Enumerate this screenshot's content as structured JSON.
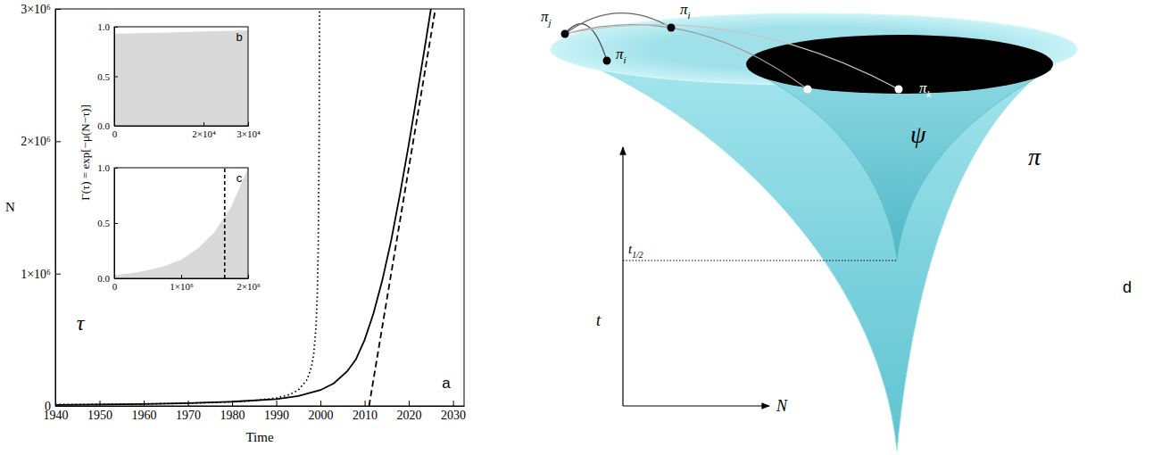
{
  "chart_data": [
    {
      "type": "line",
      "xlabel": "Time",
      "ylabel": "N",
      "annotations": [
        "a"
      ],
      "xlim": [
        1940,
        2032.5
      ],
      "ylim": [
        0,
        3000000
      ],
      "xticks": [
        1940,
        1950,
        1960,
        1970,
        1980,
        1990,
        2000,
        2010,
        2020,
        2030
      ],
      "yticks": [
        0,
        {
          "value": 1000000,
          "label": "1×10⁶"
        },
        {
          "value": 2000000,
          "label": "2×10⁶"
        },
        {
          "value": 3000000,
          "label": "3×10⁶"
        }
      ],
      "series": [
        {
          "color": "#000000",
          "line_style": "dotted",
          "x": [
            1940,
            1950,
            1960,
            1970,
            1980,
            1985,
            1990,
            1993,
            1995,
            1997,
            1998,
            1998.5,
            1999,
            1999.3,
            1999.5,
            1999.7,
            1999.8
          ],
          "values": [
            10000,
            12000,
            15000,
            20000,
            30000,
            40000,
            60000,
            86000,
            120000,
            200000,
            300000,
            400000,
            600000,
            857000,
            1200000,
            2000000,
            3000000
          ]
        },
        {
          "color": "#000000",
          "line_style": "solid",
          "x": [
            1940,
            1950,
            1960,
            1970,
            1980,
            1990,
            1995,
            2000,
            2003,
            2006,
            2008,
            2010,
            2012,
            2014,
            2016,
            2018,
            2020,
            2022,
            2024,
            2025
          ],
          "values": [
            8000,
            11000,
            15000,
            21000,
            32000,
            52000,
            75000,
            120000,
            170000,
            260000,
            350000,
            500000,
            700000,
            950000,
            1250000,
            1600000,
            1980000,
            2380000,
            2790000,
            3000000
          ]
        },
        {
          "color": "#000000",
          "line_style": "dashed",
          "x": [
            2011,
            2026
          ],
          "values": [
            0,
            3000000
          ]
        }
      ]
    },
    {
      "type": "area",
      "ylabel": "Γ(τ) = exp[−μ(N−τ)]",
      "annotations": [
        "b"
      ],
      "color": "#d9d9d9",
      "xlim": [
        0,
        30000
      ],
      "ylim": [
        0,
        1
      ],
      "xticks": [
        0,
        {
          "value": 20000,
          "label": "2×10⁴"
        },
        {
          "value": 30000,
          "label": "3×10⁴"
        }
      ],
      "yticks": [
        {
          "value": 0,
          "label": "0.0"
        },
        0.5,
        {
          "value": 1,
          "label": "1.0"
        }
      ],
      "x": [
        0,
        5000,
        10000,
        15000,
        20000,
        25000,
        30000
      ],
      "values": [
        0.93,
        0.935,
        0.94,
        0.946,
        0.952,
        0.958,
        0.965
      ]
    },
    {
      "type": "area",
      "xlabel": "τ",
      "annotations": [
        "c"
      ],
      "color": "#d9d9d9",
      "xlim": [
        0,
        2000000
      ],
      "ylim": [
        0,
        1
      ],
      "xticks": [
        0,
        {
          "value": 1000000,
          "label": "1×10⁶"
        },
        {
          "value": 2000000,
          "label": "2×10⁶"
        }
      ],
      "yticks": [
        {
          "value": 0,
          "label": "0.0"
        },
        0.5,
        {
          "value": 1,
          "label": "1.0"
        }
      ],
      "x": [
        0,
        250000,
        500000,
        750000,
        1000000,
        1250000,
        1500000,
        1750000,
        2000000
      ],
      "values": [
        0.03,
        0.047,
        0.072,
        0.11,
        0.17,
        0.27,
        0.42,
        0.65,
        1.0
      ],
      "vline": 1650000
    }
  ],
  "diagram": {
    "points": [
      {
        "symbol": "π",
        "sub": "j"
      },
      {
        "symbol": "π",
        "sub": "i"
      },
      {
        "symbol": "π",
        "sub": "i"
      },
      {
        "symbol": "π",
        "sub": "k"
      }
    ],
    "inner_region": "ψ",
    "outer_region": "π",
    "y_axis": "t",
    "x_axis": "N",
    "level_label": {
      "symbol": "t",
      "sub": "1/2"
    },
    "panel": "d"
  }
}
